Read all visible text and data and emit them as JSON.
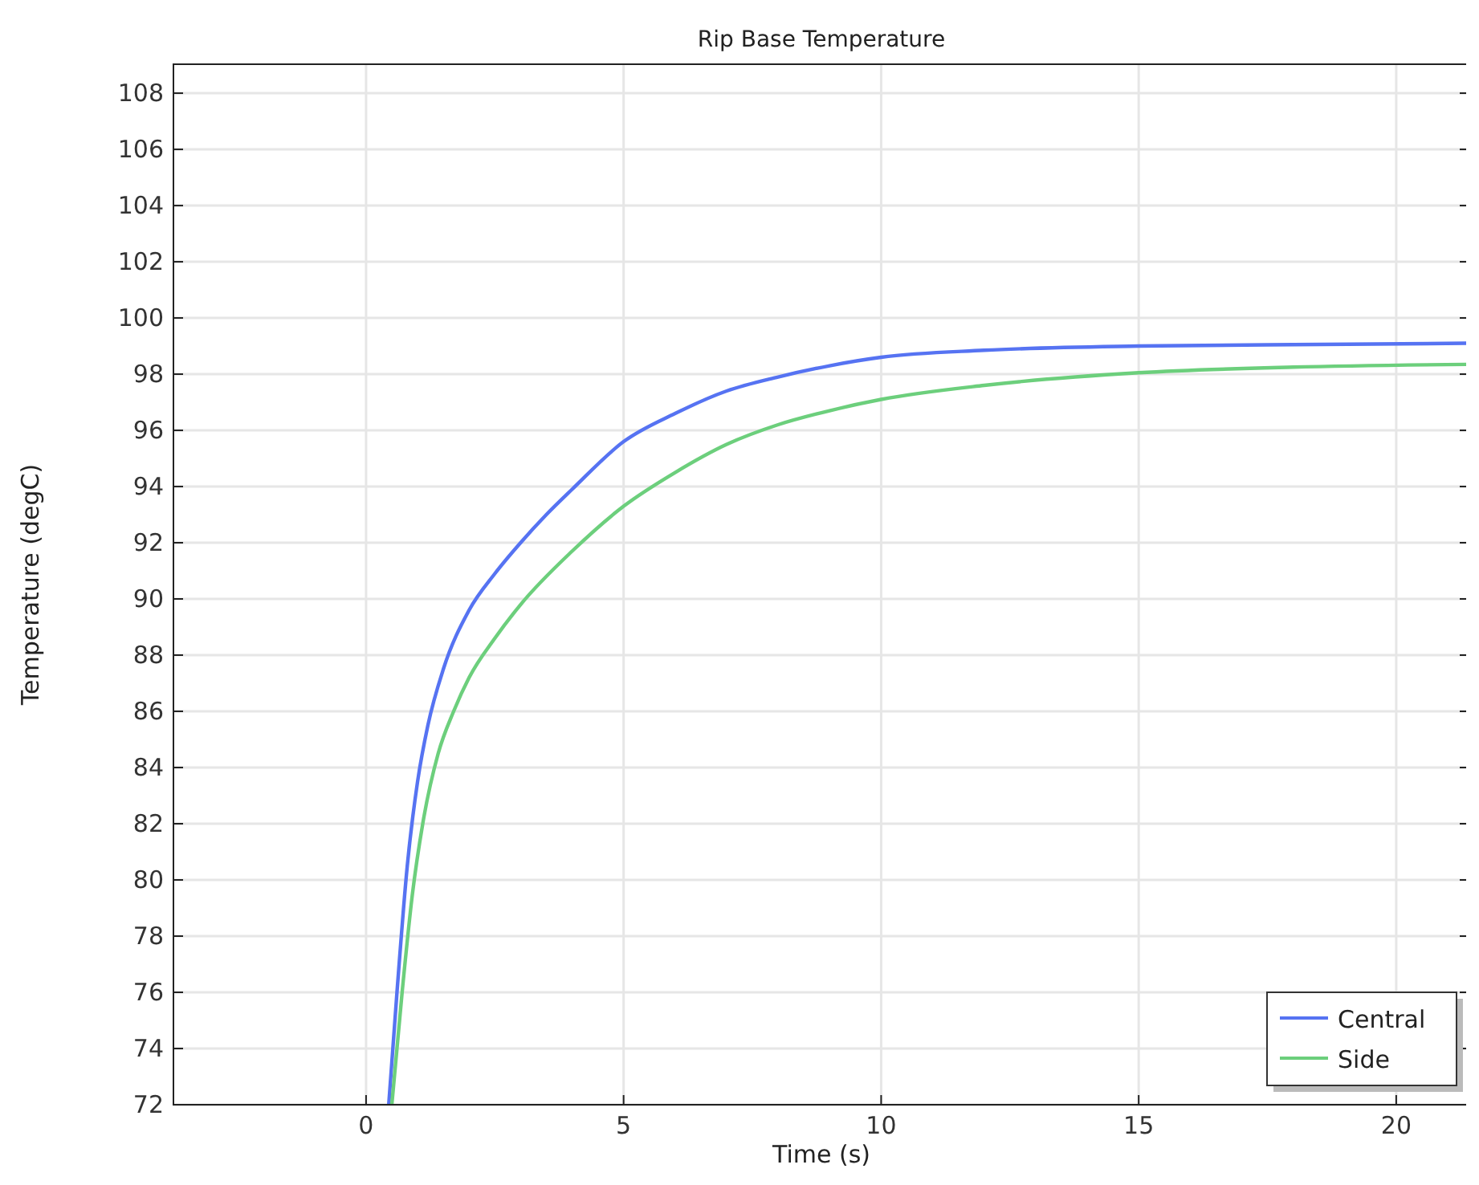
{
  "chart_data": {
    "type": "line",
    "title": "Rip Base Temperature",
    "xlabel": "Time (s)",
    "ylabel": "Temperature (degC)",
    "xlim": [
      -3.74,
      21.42
    ],
    "ylim": [
      72,
      109.03
    ],
    "xticks": [
      0,
      5,
      10,
      15,
      20
    ],
    "yticks": [
      72,
      74,
      76,
      78,
      80,
      82,
      84,
      86,
      88,
      90,
      92,
      94,
      96,
      98,
      100,
      102,
      104,
      106,
      108
    ],
    "grid": true,
    "legend": "bottom right",
    "line_style": "solid",
    "marker": "none",
    "series": [
      {
        "name": "Central",
        "color": "#5673f2",
        "x": [
          0.44,
          0.6,
          0.8,
          1.0,
          1.2,
          1.5,
          2.0,
          2.5,
          3,
          3.5,
          4,
          5,
          6,
          7,
          8,
          9,
          10,
          12,
          15,
          18,
          21.42
        ],
        "values": [
          72,
          76,
          80.5,
          83.5,
          85.5,
          87.5,
          89.6,
          90.9,
          92.0,
          93.0,
          93.9,
          95.6,
          96.6,
          97.4,
          97.9,
          98.3,
          98.6,
          98.85,
          99.0,
          99.05,
          99.1
        ]
      },
      {
        "name": "Side",
        "color": "#6ccf7c",
        "x": [
          0.5,
          0.7,
          0.9,
          1.1,
          1.4,
          1.7,
          2,
          2.5,
          3,
          4,
          5,
          6,
          7,
          8,
          9,
          10,
          12,
          15,
          18,
          21.42
        ],
        "values": [
          72,
          76,
          79.5,
          82,
          84.5,
          86,
          87.2,
          88.6,
          89.8,
          91.7,
          93.3,
          94.5,
          95.5,
          96.2,
          96.7,
          97.1,
          97.6,
          98.05,
          98.25,
          98.35
        ]
      }
    ]
  }
}
